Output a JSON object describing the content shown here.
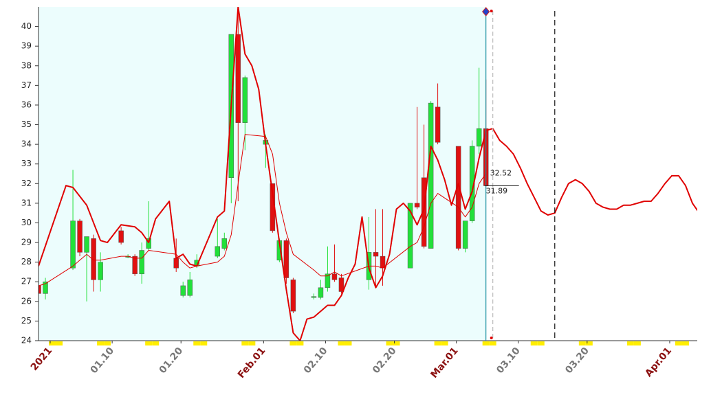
{
  "chart_data": {
    "type": "candlestick",
    "x": [
      "12.30",
      "12.31",
      "01.04",
      "01.05",
      "01.06",
      "01.07",
      "01.08",
      "01.11",
      "01.12",
      "01.13",
      "01.14",
      "01.15",
      "01.19",
      "01.20",
      "01.21",
      "01.22",
      "01.25",
      "01.26",
      "01.27",
      "01.28",
      "01.29",
      "02.01",
      "02.02",
      "02.03",
      "02.04",
      "02.05",
      "02.08",
      "02.09",
      "02.10",
      "02.11",
      "02.12",
      "02.16",
      "02.17",
      "02.18",
      "02.22",
      "02.23",
      "02.24",
      "02.25",
      "02.26",
      "03.01",
      "03.02",
      "03.03",
      "03.04",
      "03.05"
    ],
    "open": [
      26.8,
      26.4,
      27.7,
      30.1,
      28.5,
      29.2,
      27.1,
      29.6,
      28.25,
      28.3,
      27.4,
      28.7,
      28.2,
      26.3,
      26.3,
      27.8,
      28.3,
      28.7,
      32.3,
      39.6,
      35.1,
      34.0,
      32.0,
      28.1,
      29.1,
      27.1,
      26.2,
      26.2,
      26.7,
      27.4,
      27.2,
      27.1,
      28.5,
      28.3,
      27.7,
      31.0,
      32.3,
      28.7,
      35.9,
      33.9,
      28.7,
      30.1,
      33.9,
      34.8
    ],
    "high": [
      26.9,
      27.2,
      32.7,
      30.2,
      29.3,
      29.4,
      28.5,
      29.8,
      28.4,
      28.4,
      29.0,
      31.1,
      29.2,
      27.0,
      27.5,
      28.4,
      30.2,
      29.5,
      39.6,
      40.9,
      37.5,
      34.5,
      32.0,
      29.2,
      29.2,
      27.2,
      26.4,
      27.1,
      28.8,
      28.9,
      27.4,
      30.3,
      30.7,
      30.7,
      31.0,
      35.9,
      35.0,
      36.2,
      37.1,
      33.9,
      30.1,
      34.2,
      37.9,
      37.3
    ],
    "low": [
      26.3,
      26.1,
      27.6,
      28.3,
      26.0,
      26.5,
      26.5,
      28.9,
      28.2,
      27.3,
      26.9,
      28.6,
      27.5,
      26.2,
      26.2,
      27.7,
      28.2,
      28.6,
      31.0,
      31.1,
      33.7,
      32.8,
      29.5,
      28.0,
      26.9,
      25.4,
      26.1,
      26.1,
      26.5,
      27.0,
      26.4,
      26.6,
      26.7,
      26.8,
      27.7,
      30.7,
      28.7,
      28.7,
      34.0,
      28.6,
      28.5,
      30.0,
      33.5,
      31.8
    ],
    "close": [
      26.4,
      27.0,
      30.1,
      28.5,
      29.3,
      27.1,
      28.0,
      29.0,
      28.3,
      27.4,
      28.6,
      29.2,
      27.7,
      26.8,
      27.1,
      28.1,
      28.8,
      29.2,
      39.6,
      35.1,
      37.4,
      34.2,
      29.6,
      29.1,
      27.2,
      25.5,
      26.25,
      26.7,
      27.4,
      27.1,
      26.5,
      28.5,
      28.3,
      27.7,
      31.0,
      30.8,
      28.8,
      36.1,
      34.1,
      28.7,
      30.1,
      33.9,
      34.8,
      31.89
    ],
    "up_color": "#22e03a",
    "down_color": "#e01010",
    "lines": [
      {
        "color": "#e00000",
        "width": 2,
        "x": [
          "12.30",
          "01.03",
          "01.04",
          "01.06",
          "01.08",
          "01.09",
          "01.11",
          "01.13",
          "01.14",
          "01.15",
          "01.16",
          "01.18",
          "01.19",
          "01.20",
          "01.21",
          "01.22",
          "01.25",
          "01.26",
          "01.27",
          "01.28",
          "01.29",
          "01.30",
          "01.31",
          "02.01",
          "02.02",
          "02.03",
          "02.04",
          "02.05",
          "02.06",
          "02.07",
          "02.08",
          "02.09",
          "02.10",
          "02.11",
          "02.12",
          "02.13",
          "02.14",
          "02.15",
          "02.16",
          "02.17",
          "02.18",
          "02.19",
          "02.20",
          "02.21",
          "02.22",
          "02.23",
          "02.24",
          "02.25",
          "02.26",
          "02.27",
          "02.28",
          "03.01",
          "03.02",
          "03.03",
          "03.04",
          "03.05",
          "03.06",
          "03.07",
          "03.08",
          "03.09",
          "03.10",
          "03.11",
          "03.12",
          "03.13",
          "03.14",
          "03.15",
          "03.16",
          "03.17",
          "03.18",
          "03.19",
          "03.20",
          "03.21",
          "03.22",
          "03.23",
          "03.24",
          "03.25",
          "03.26",
          "03.27",
          "03.28",
          "03.29",
          "03.30",
          "03.31",
          "04.01",
          "04.02",
          "04.03",
          "04.04",
          "04.05"
        ],
        "values": [
          27.8,
          31.9,
          31.8,
          30.9,
          29.1,
          29.0,
          29.9,
          29.8,
          29.5,
          29.0,
          30.2,
          31.1,
          28.2,
          28.4,
          27.9,
          27.8,
          30.3,
          30.6,
          36.0,
          41.0,
          38.6,
          38.0,
          36.8,
          34.0,
          31.5,
          29.0,
          26.6,
          24.4,
          24.0,
          25.1,
          25.2,
          25.5,
          25.8,
          25.8,
          26.3,
          27.2,
          27.9,
          30.3,
          27.7,
          26.7,
          27.3,
          28.4,
          30.7,
          31.0,
          30.6,
          29.9,
          30.7,
          33.9,
          33.2,
          32.2,
          30.9,
          32.0,
          30.7,
          31.6,
          33.3,
          34.7,
          34.8,
          34.2,
          33.9,
          33.5,
          32.8,
          32.0,
          31.3,
          30.6,
          30.4,
          30.5,
          31.3,
          32.0,
          32.2,
          32.0,
          31.6,
          31.0,
          30.8,
          30.7,
          30.7,
          30.9,
          30.9,
          31.0,
          31.1,
          31.1,
          31.5,
          32.0,
          32.4,
          32.4,
          31.9,
          31.0,
          30.5
        ]
      },
      {
        "color": "#e00000",
        "width": 1,
        "x": [
          "12.30",
          "12.31",
          "01.04",
          "01.05",
          "01.06",
          "01.07",
          "01.08",
          "01.11",
          "01.12",
          "01.13",
          "01.14",
          "01.15",
          "01.19",
          "01.20",
          "01.21",
          "01.22",
          "01.25",
          "01.26",
          "01.27",
          "01.28",
          "01.29",
          "02.01",
          "02.02",
          "02.03",
          "02.04",
          "02.05",
          "02.08",
          "02.09",
          "02.10",
          "02.11",
          "02.12",
          "02.16",
          "02.17",
          "02.18",
          "02.22",
          "02.23",
          "02.24",
          "02.25",
          "02.26",
          "03.01",
          "03.02",
          "03.03",
          "03.04",
          "03.05"
        ],
        "values": [
          26.8,
          26.9,
          27.8,
          28.1,
          28.4,
          28.1,
          28.1,
          28.3,
          28.3,
          28.2,
          28.2,
          28.6,
          28.4,
          28.0,
          27.7,
          27.8,
          28.0,
          28.3,
          29.4,
          32.0,
          34.5,
          34.4,
          33.5,
          31.0,
          29.5,
          28.4,
          27.6,
          27.3,
          27.3,
          27.5,
          27.3,
          27.8,
          27.8,
          27.7,
          28.8,
          29.0,
          29.8,
          31.0,
          31.5,
          30.8,
          30.3,
          30.8,
          32.0,
          32.52
        ]
      }
    ],
    "annotations": [
      {
        "value": 32.52,
        "label": "32.52"
      },
      {
        "value": 31.89,
        "label": "31.89"
      }
    ],
    "vlines": [
      {
        "x": "03.05",
        "color": "#1a8fa0",
        "dash": "none"
      },
      {
        "x": "03.06",
        "color": "#bbbbbb",
        "dash": "6,4"
      },
      {
        "x": "03.15",
        "color": "#111111",
        "dash": "8,5"
      }
    ],
    "history_background": "#ecfdfd",
    "weekend_color": "#ffee00",
    "xlim": [
      "12.30",
      "04.05"
    ],
    "xticks": [
      {
        "value": "01.01",
        "label": "2021",
        "color": "#8b1010"
      },
      {
        "value": "01.10",
        "label": "01.10",
        "color": "#777777"
      },
      {
        "value": "01.20",
        "label": "01.20",
        "color": "#777777"
      },
      {
        "value": "02.01",
        "label": "Feb.01",
        "color": "#8b1010"
      },
      {
        "value": "02.10",
        "label": "02.10",
        "color": "#777777"
      },
      {
        "value": "02.20",
        "label": "02.20",
        "color": "#777777"
      },
      {
        "value": "03.01",
        "label": "Mar.01",
        "color": "#8b1010"
      },
      {
        "value": "03.10",
        "label": "03.10",
        "color": "#777777"
      },
      {
        "value": "03.20",
        "label": "03.20",
        "color": "#777777"
      },
      {
        "value": "04.01",
        "label": "Apr.01",
        "color": "#8b1010"
      }
    ],
    "ylim": [
      24,
      41
    ],
    "yticks": [
      24,
      25,
      26,
      27,
      28,
      29,
      30,
      31,
      32,
      33,
      34,
      35,
      36,
      37,
      38,
      39,
      40
    ]
  }
}
